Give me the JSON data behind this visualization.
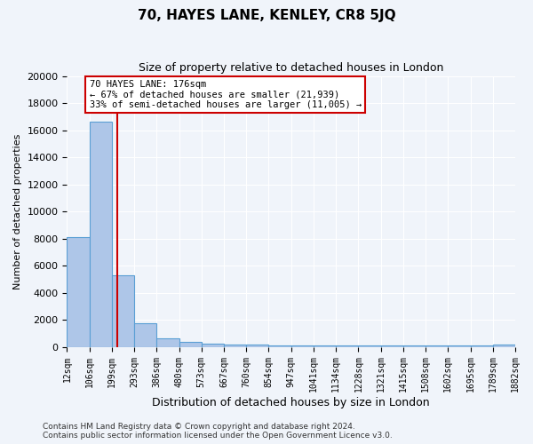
{
  "title1": "70, HAYES LANE, KENLEY, CR8 5JQ",
  "title2": "Size of property relative to detached houses in London",
  "xlabel": "Distribution of detached houses by size in London",
  "ylabel": "Number of detached properties",
  "bar_heights": [
    8100,
    16600,
    5300,
    1750,
    650,
    350,
    250,
    200,
    170,
    130,
    120,
    110,
    100,
    90,
    90,
    100,
    90,
    85,
    85,
    200
  ],
  "tick_labels": [
    "12sqm",
    "106sqm",
    "199sqm",
    "293sqm",
    "386sqm",
    "480sqm",
    "573sqm",
    "667sqm",
    "760sqm",
    "854sqm",
    "947sqm",
    "1041sqm",
    "1134sqm",
    "1228sqm",
    "1321sqm",
    "1415sqm",
    "1508sqm",
    "1602sqm",
    "1695sqm",
    "1789sqm",
    "1882sqm"
  ],
  "bar_color": "#aec6e8",
  "bar_edge_color": "#5a9fd4",
  "property_bin": 1,
  "red_line_color": "#cc0000",
  "annotation_text": "70 HAYES LANE: 176sqm\n← 67% of detached houses are smaller (21,939)\n33% of semi-detached houses are larger (11,005) →",
  "ylim": [
    0,
    20000
  ],
  "yticks": [
    0,
    2000,
    4000,
    6000,
    8000,
    10000,
    12000,
    14000,
    16000,
    18000,
    20000
  ],
  "footer1": "Contains HM Land Registry data © Crown copyright and database right 2024.",
  "footer2": "Contains public sector information licensed under the Open Government Licence v3.0.",
  "background_color": "#f0f4fa",
  "grid_color": "#ffffff",
  "fig_width": 6.0,
  "fig_height": 5.0
}
